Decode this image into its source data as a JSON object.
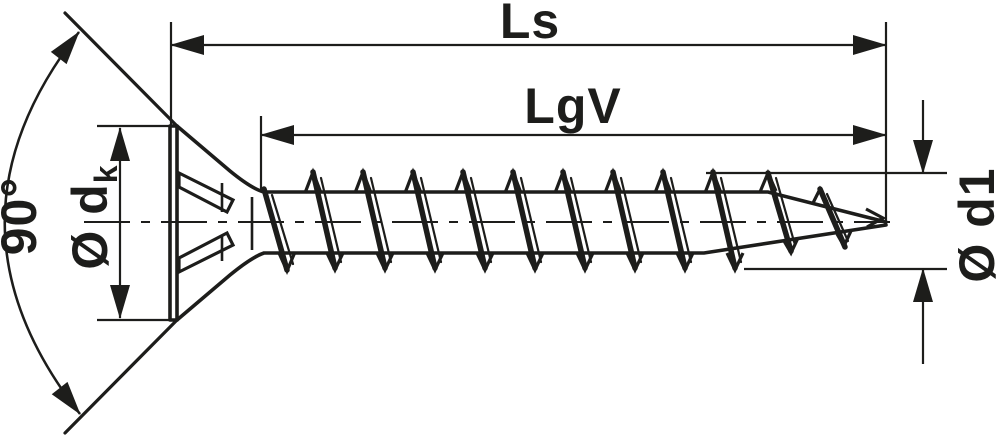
{
  "diagram": {
    "labels": {
      "total_length": "Ls",
      "thread_length": "LgV",
      "head_angle": "90°",
      "head_diameter_prefix": "Ø d",
      "head_diameter_sub": "k",
      "thread_diameter": "Ø d1"
    },
    "colors": {
      "line": "#1d1d1b",
      "background": "#ffffff"
    }
  }
}
